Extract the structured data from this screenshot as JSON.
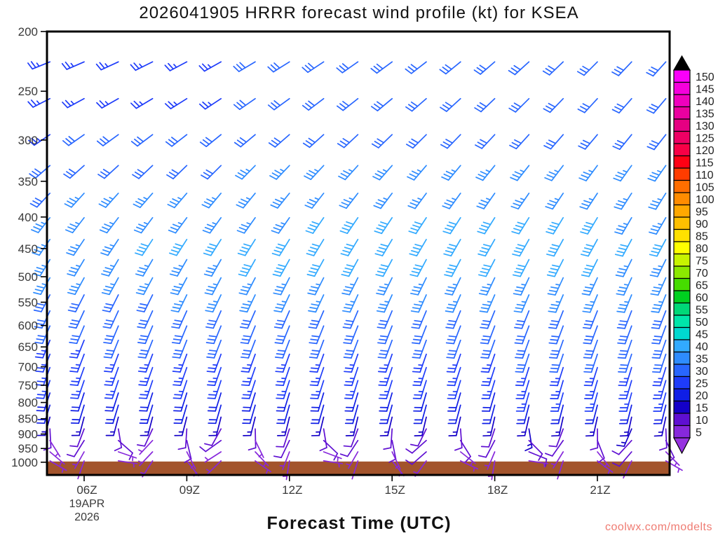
{
  "watermark": "coolwx.com/modelts",
  "chart_data": {
    "type": "wind-barb-time-height",
    "title": "2026041905 HRRR forecast wind profile (kt) for KSEA",
    "xlabel": "Forecast Time (UTC)",
    "model": "HRRR",
    "station": "KSEA",
    "init_time": "2026041905",
    "units": "kt",
    "x_ticks": {
      "hours": [
        6,
        9,
        12,
        15,
        18,
        21
      ],
      "labels": [
        "06Z",
        "09Z",
        "12Z",
        "15Z",
        "18Z",
        "21Z"
      ]
    },
    "x_date_label": [
      "19APR",
      "2026"
    ],
    "y_ticks": [
      200,
      250,
      300,
      350,
      400,
      450,
      500,
      550,
      600,
      650,
      700,
      750,
      800,
      850,
      900,
      950,
      1000
    ],
    "y_scale": "log-pressure-mb",
    "y_range": [
      200,
      1000
    ],
    "forecast_hours": [
      5,
      6,
      7,
      8,
      9,
      10,
      11,
      12,
      13,
      14,
      15,
      16,
      17,
      18,
      19,
      20,
      21,
      22,
      23
    ],
    "pressure_levels_mb": [
      224,
      257,
      294,
      330,
      366,
      401,
      435,
      469,
      502,
      535,
      568,
      601,
      634,
      668,
      702,
      737,
      772,
      808,
      845,
      883,
      922,
      962,
      995
    ],
    "wind_profile": {
      "columns": "[pressure_mb, speed_kt_05Z, speed_kt_23Z, midrun_speed_bump_kt, dir_deg_05Z, dir_deg_23Z]",
      "levels": [
        [
          224,
          25,
          31,
          1,
          248,
          222
        ],
        [
          257,
          25,
          31,
          1,
          243,
          220
        ],
        [
          294,
          27,
          32,
          2,
          236,
          218
        ],
        [
          330,
          30,
          33,
          2,
          229,
          215
        ],
        [
          366,
          32,
          35,
          2,
          223,
          212
        ],
        [
          401,
          33,
          37,
          3,
          218,
          210
        ],
        [
          435,
          35,
          38,
          4,
          214,
          208
        ],
        [
          469,
          34,
          37,
          3,
          211,
          206
        ],
        [
          502,
          33,
          35,
          2,
          209,
          204
        ],
        [
          535,
          31,
          33,
          2,
          207,
          202
        ],
        [
          568,
          30,
          32,
          1,
          205,
          201
        ],
        [
          601,
          28,
          30,
          1,
          203,
          200
        ],
        [
          634,
          27,
          29,
          1,
          202,
          199
        ],
        [
          668,
          26,
          28,
          0,
          201,
          198
        ],
        [
          702,
          25,
          27,
          0,
          200,
          197
        ],
        [
          737,
          23,
          25,
          0,
          199,
          196
        ],
        [
          772,
          21,
          23,
          0,
          198,
          195
        ],
        [
          808,
          18,
          20,
          0,
          197,
          194
        ],
        [
          845,
          14,
          16,
          0,
          195,
          192
        ],
        [
          883,
          10,
          12,
          0,
          192,
          188
        ],
        [
          922,
          8,
          9,
          0,
          188,
          182
        ],
        [
          962,
          6,
          7,
          0,
          180,
          170
        ],
        [
          995,
          5,
          6,
          0,
          170,
          155
        ]
      ]
    },
    "surface_dir_variation_deg": [
      -50,
      30,
      -70,
      45,
      -25,
      60,
      -40,
      25,
      -65,
      35,
      -20,
      55,
      -45,
      30,
      -60,
      40,
      -30,
      50,
      -35
    ],
    "colorbar": {
      "values": [
        150,
        145,
        140,
        135,
        130,
        125,
        120,
        115,
        110,
        105,
        100,
        95,
        90,
        85,
        80,
        75,
        70,
        65,
        60,
        55,
        50,
        45,
        40,
        35,
        30,
        25,
        20,
        15,
        10,
        5
      ],
      "colors": [
        "#FA00FA",
        "#F500DC",
        "#F000BE",
        "#EB00A0",
        "#E60082",
        "#EE0064",
        "#F80046",
        "#FF0014",
        "#FF3C00",
        "#FF6E00",
        "#FF8C00",
        "#FFA800",
        "#FFC000",
        "#FFE000",
        "#FFFF00",
        "#C8F400",
        "#8CE800",
        "#46DC00",
        "#00D020",
        "#00D878",
        "#00E6AA",
        "#00D8D0",
        "#32AAFF",
        "#2E8CFF",
        "#2866FF",
        "#1E3CFA",
        "#0F1EE6",
        "#1400C8",
        "#5F0FD2",
        "#8728DC"
      ],
      "over": "#000000",
      "under": "#9632E0"
    },
    "ground_color": "#A3542C"
  }
}
